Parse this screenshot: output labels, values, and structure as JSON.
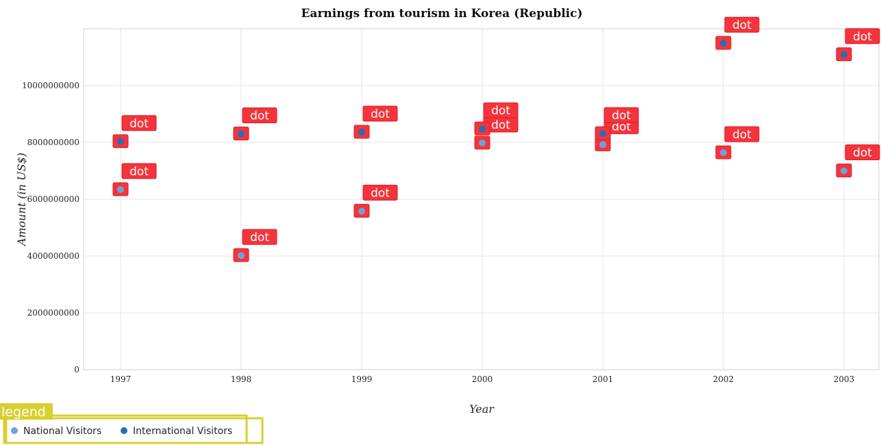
{
  "chart_data": {
    "type": "scatter",
    "title": "Earnings from tourism in Korea (Republic)",
    "xlabel": "Year",
    "ylabel": "Amount (in US$)",
    "categories": [
      "1997",
      "1998",
      "1999",
      "2000",
      "2001",
      "2002",
      "2003"
    ],
    "ylim": [
      0,
      12000000000
    ],
    "yticks": [
      0,
      2000000000,
      4000000000,
      6000000000,
      8000000000,
      10000000000
    ],
    "ytick_labels": [
      "0",
      "2000000000",
      "4000000000",
      "6000000000",
      "8000000000",
      "10000000000"
    ],
    "grid": true,
    "point_annotation": "dot",
    "series": [
      {
        "name": "National Visitors",
        "color": "#6fa0dc",
        "values": [
          6340000000,
          4020000000,
          5580000000,
          7980000000,
          7920000000,
          7640000000,
          7000000000
        ]
      },
      {
        "name": "International Visitors",
        "color": "#2a6db5",
        "values": [
          8030000000,
          8300000000,
          8360000000,
          8480000000,
          8310000000,
          11490000000,
          11090000000
        ]
      }
    ]
  },
  "legend": {
    "title": "legend",
    "placement": "bottom-left",
    "title_bg": "#d8cf30"
  }
}
